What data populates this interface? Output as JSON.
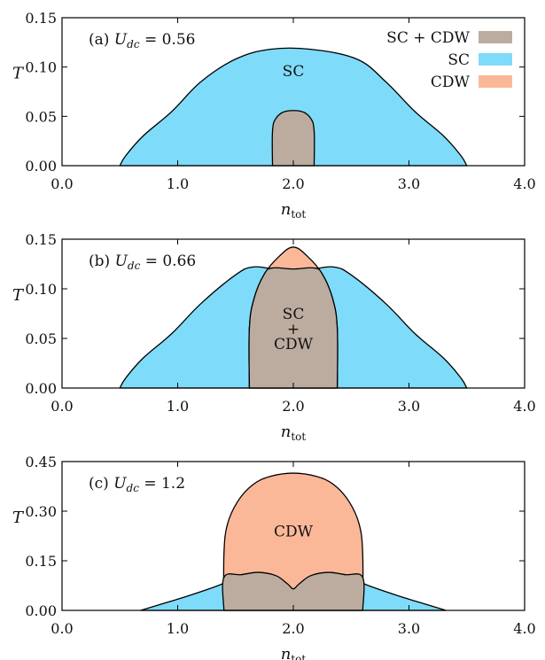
{
  "colors": {
    "sc": "#7fdbfa",
    "cdw": "#fbb899",
    "sc_cdw": "#bcaca0"
  },
  "legend": [
    {
      "key": "sc_cdw",
      "label": "SC + CDW"
    },
    {
      "key": "sc",
      "label": "SC"
    },
    {
      "key": "cdw",
      "label": "CDW"
    }
  ],
  "chart_data": [
    {
      "type": "area",
      "panel_label": "(a)",
      "title": "U_dc = 0.56",
      "param_name": "U",
      "param_sub": "dc",
      "param_value": "= 0.56",
      "xlabel": "n",
      "xlabel_sub": "tot",
      "ylabel": "T",
      "xlim": [
        0.0,
        4.0
      ],
      "ylim": [
        0.0,
        0.15
      ],
      "xticks": [
        "0.0",
        "1.0",
        "2.0",
        "3.0",
        "4.0"
      ],
      "yticks": [
        "0.00",
        "0.05",
        "0.10",
        "0.15"
      ],
      "xtick_values": [
        0,
        1,
        2,
        3,
        4
      ],
      "ytick_values": [
        0,
        0.05,
        0.1,
        0.15
      ],
      "show_legend": true,
      "regions": [
        {
          "phase": "sc",
          "label": "SC",
          "label_at": [
            2.0,
            0.096
          ],
          "boundary": [
            [
              0.5,
              0
            ],
            [
              0.55,
              0.01
            ],
            [
              0.7,
              0.03
            ],
            [
              0.95,
              0.055
            ],
            [
              1.2,
              0.085
            ],
            [
              1.5,
              0.108
            ],
            [
              1.8,
              0.118
            ],
            [
              2.15,
              0.118
            ],
            [
              2.55,
              0.108
            ],
            [
              2.8,
              0.085
            ],
            [
              3.05,
              0.055
            ],
            [
              3.3,
              0.03
            ],
            [
              3.45,
              0.01
            ],
            [
              3.5,
              0
            ]
          ]
        },
        {
          "phase": "sc_cdw",
          "label": "",
          "boundary": [
            [
              1.82,
              0
            ],
            [
              1.82,
              0.035
            ],
            [
              1.85,
              0.048
            ],
            [
              1.93,
              0.055
            ],
            [
              2.07,
              0.055
            ],
            [
              2.15,
              0.048
            ],
            [
              2.18,
              0.035
            ],
            [
              2.18,
              0
            ]
          ]
        }
      ]
    },
    {
      "type": "area",
      "panel_label": "(b)",
      "title": "U_dc = 0.66",
      "param_name": "U",
      "param_sub": "dc",
      "param_value": "= 0.66",
      "xlabel": "n",
      "xlabel_sub": "tot",
      "ylabel": "T",
      "xlim": [
        0.0,
        4.0
      ],
      "ylim": [
        0.0,
        0.15
      ],
      "xticks": [
        "0.0",
        "1.0",
        "2.0",
        "3.0",
        "4.0"
      ],
      "yticks": [
        "0.00",
        "0.05",
        "0.10",
        "0.15"
      ],
      "xtick_values": [
        0,
        1,
        2,
        3,
        4
      ],
      "ytick_values": [
        0,
        0.05,
        0.1,
        0.15
      ],
      "show_legend": false,
      "regions": [
        {
          "phase": "sc",
          "label": "",
          "boundary": [
            [
              0.5,
              0
            ],
            [
              0.55,
              0.01
            ],
            [
              0.7,
              0.03
            ],
            [
              0.95,
              0.055
            ],
            [
              1.2,
              0.085
            ],
            [
              1.5,
              0.114
            ],
            [
              1.65,
              0.122
            ],
            [
              1.85,
              0.12
            ],
            [
              2.15,
              0.12
            ],
            [
              2.35,
              0.122
            ],
            [
              2.5,
              0.114
            ],
            [
              2.8,
              0.085
            ],
            [
              3.05,
              0.055
            ],
            [
              3.3,
              0.03
            ],
            [
              3.45,
              0.01
            ],
            [
              3.5,
              0
            ]
          ]
        },
        {
          "phase": "cdw",
          "label": "",
          "boundary": [
            [
              1.62,
              0
            ],
            [
              1.62,
              0.06
            ],
            [
              1.66,
              0.09
            ],
            [
              1.75,
              0.115
            ],
            [
              1.88,
              0.133
            ],
            [
              2.0,
              0.142
            ],
            [
              2.12,
              0.133
            ],
            [
              2.25,
              0.115
            ],
            [
              2.34,
              0.09
            ],
            [
              2.38,
              0.06
            ],
            [
              2.38,
              0
            ]
          ]
        },
        {
          "phase": "sc_cdw",
          "label": "SC\n+\nCDW",
          "label_at": [
            2.0,
            0.06
          ],
          "boundary": [
            [
              1.62,
              0
            ],
            [
              1.62,
              0.06
            ],
            [
              1.66,
              0.09
            ],
            [
              1.75,
              0.115
            ],
            [
              1.82,
              0.121
            ],
            [
              2.0,
              0.12
            ],
            [
              2.18,
              0.121
            ],
            [
              2.25,
              0.115
            ],
            [
              2.34,
              0.09
            ],
            [
              2.38,
              0.06
            ],
            [
              2.38,
              0
            ]
          ]
        }
      ]
    },
    {
      "type": "area",
      "panel_label": "(c)",
      "title": "U_dc = 1.2",
      "param_name": "U",
      "param_sub": "dc",
      "param_value": "= 1.2",
      "xlabel": "n",
      "xlabel_sub": "tot",
      "ylabel": "T",
      "xlim": [
        0.0,
        4.0
      ],
      "ylim": [
        0.0,
        0.45
      ],
      "xticks": [
        "0.0",
        "1.0",
        "2.0",
        "3.0",
        "4.0"
      ],
      "yticks": [
        "0.00",
        "0.15",
        "0.30",
        "0.45"
      ],
      "xtick_values": [
        0,
        1,
        2,
        3,
        4
      ],
      "ytick_values": [
        0,
        0.15,
        0.3,
        0.45
      ],
      "show_legend": false,
      "regions": [
        {
          "phase": "sc",
          "label": "",
          "boundary": [
            [
              0.68,
              0
            ],
            [
              0.85,
              0.018
            ],
            [
              1.1,
              0.045
            ],
            [
              1.35,
              0.075
            ],
            [
              1.55,
              0.105
            ],
            [
              1.7,
              0.115
            ],
            [
              1.85,
              0.105
            ],
            [
              1.95,
              0.08
            ],
            [
              2.0,
              0.065
            ],
            [
              2.05,
              0.08
            ],
            [
              2.15,
              0.105
            ],
            [
              2.3,
              0.115
            ],
            [
              2.45,
              0.105
            ],
            [
              2.65,
              0.075
            ],
            [
              2.9,
              0.045
            ],
            [
              3.15,
              0.018
            ],
            [
              3.32,
              0
            ]
          ]
        },
        {
          "phase": "cdw",
          "label": "CDW",
          "label_at": [
            2.0,
            0.24
          ],
          "boundary": [
            [
              1.4,
              0
            ],
            [
              1.4,
              0.17
            ],
            [
              1.43,
              0.26
            ],
            [
              1.52,
              0.33
            ],
            [
              1.65,
              0.38
            ],
            [
              1.8,
              0.405
            ],
            [
              2.0,
              0.415
            ],
            [
              2.2,
              0.405
            ],
            [
              2.35,
              0.38
            ],
            [
              2.48,
              0.33
            ],
            [
              2.57,
              0.26
            ],
            [
              2.6,
              0.17
            ],
            [
              2.6,
              0
            ]
          ]
        },
        {
          "phase": "sc_cdw",
          "label": "",
          "boundary": [
            [
              1.4,
              0
            ],
            [
              1.4,
              0.1
            ],
            [
              1.55,
              0.108
            ],
            [
              1.7,
              0.115
            ],
            [
              1.85,
              0.105
            ],
            [
              1.95,
              0.08
            ],
            [
              2.0,
              0.065
            ],
            [
              2.05,
              0.08
            ],
            [
              2.15,
              0.105
            ],
            [
              2.3,
              0.115
            ],
            [
              2.45,
              0.108
            ],
            [
              2.6,
              0.1
            ],
            [
              2.6,
              0
            ]
          ]
        }
      ]
    }
  ]
}
